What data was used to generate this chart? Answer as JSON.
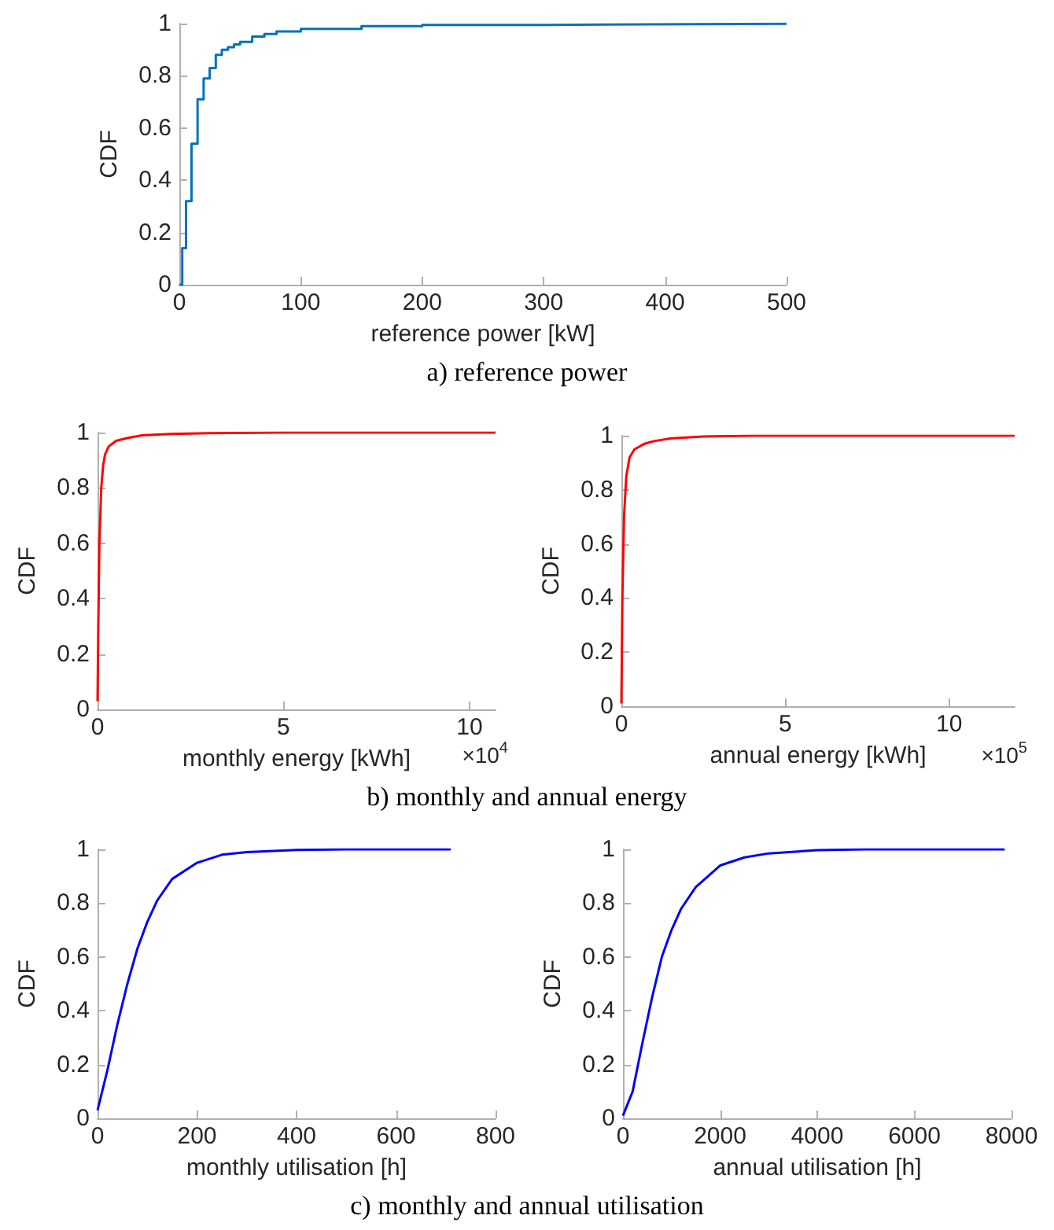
{
  "chart_data": [
    {
      "type": "step",
      "title": "a) reference power",
      "xlabel": "reference power [kW]",
      "ylabel": "CDF",
      "xlim": [
        0,
        500
      ],
      "xticks": [
        0,
        100,
        200,
        300,
        400,
        500
      ],
      "ylim": [
        0,
        1
      ],
      "yticks": [
        0,
        0.2,
        0.4,
        0.6,
        0.8,
        1
      ],
      "series": [
        {
          "color": "#0072bd",
          "x": [
            0,
            2.4,
            5.5,
            10,
            15,
            20,
            25,
            30,
            35,
            40,
            45,
            50,
            60,
            70,
            80,
            100,
            150,
            200,
            300,
            500
          ],
          "values": [
            0,
            0.14,
            0.32,
            0.54,
            0.71,
            0.79,
            0.83,
            0.88,
            0.9,
            0.91,
            0.92,
            0.93,
            0.95,
            0.96,
            0.97,
            0.98,
            0.99,
            0.995,
            0.999,
            1
          ]
        }
      ]
    },
    {
      "type": "line",
      "title": "b) monthly and annual energy",
      "xlabel": "monthly energy [kWh]",
      "ylabel": "CDF",
      "annotations": [
        "×10$^{4}$"
      ],
      "xlim": [
        0,
        10.7
      ],
      "xticks": [
        0,
        5,
        10
      ],
      "ylim": [
        0,
        1
      ],
      "yticks": [
        0,
        0.2,
        0.4,
        0.6,
        0.8,
        1
      ],
      "series": [
        {
          "color": "#ff0000",
          "x": [
            0,
            0.02,
            0.05,
            0.1,
            0.15,
            0.2,
            0.3,
            0.5,
            0.8,
            1.2,
            2,
            3,
            5,
            10.7
          ],
          "values": [
            0.03,
            0.3,
            0.6,
            0.8,
            0.88,
            0.92,
            0.95,
            0.97,
            0.98,
            0.99,
            0.995,
            0.998,
            1,
            1
          ]
        }
      ]
    },
    {
      "type": "line",
      "xlabel": "annual energy [kWh]",
      "ylabel": "CDF",
      "annotations": [
        "×10$^{5}$"
      ],
      "xlim": [
        0,
        12
      ],
      "xticks": [
        0,
        5,
        10
      ],
      "ylim": [
        0,
        1
      ],
      "yticks": [
        0,
        0.2,
        0.4,
        0.6,
        0.8,
        1
      ],
      "series": [
        {
          "color": "#ff0000",
          "x": [
            0,
            0.03,
            0.08,
            0.15,
            0.25,
            0.4,
            0.7,
            1,
            1.5,
            2.5,
            4,
            12
          ],
          "values": [
            0.01,
            0.4,
            0.7,
            0.85,
            0.92,
            0.95,
            0.97,
            0.98,
            0.99,
            0.997,
            1,
            1
          ]
        }
      ]
    },
    {
      "type": "line",
      "title": "c) monthly and annual utilisation",
      "xlabel": "monthly utilisation [h]",
      "ylabel": "CDF",
      "xlim": [
        0,
        800
      ],
      "xticks": [
        0,
        200,
        400,
        600,
        800
      ],
      "ylim": [
        0,
        1
      ],
      "yticks": [
        0,
        0.2,
        0.4,
        0.6,
        0.8,
        1
      ],
      "series": [
        {
          "color": "#0000ff",
          "x": [
            0,
            20,
            40,
            60,
            80,
            100,
            120,
            150,
            200,
            250,
            300,
            400,
            500,
            710
          ],
          "values": [
            0.03,
            0.18,
            0.35,
            0.5,
            0.63,
            0.73,
            0.81,
            0.89,
            0.95,
            0.98,
            0.99,
            0.998,
            1,
            1
          ]
        }
      ]
    },
    {
      "type": "line",
      "xlabel": "annual utilisation [h]",
      "ylabel": "CDF",
      "xlim": [
        0,
        8000
      ],
      "xticks": [
        0,
        2000,
        4000,
        6000,
        8000
      ],
      "ylim": [
        0,
        1
      ],
      "yticks": [
        0,
        0.2,
        0.4,
        0.6,
        0.8,
        1
      ],
      "series": [
        {
          "color": "#0000ff",
          "x": [
            0,
            200,
            400,
            600,
            800,
            1000,
            1200,
            1500,
            2000,
            2500,
            3000,
            4000,
            5000,
            7860
          ],
          "values": [
            0.01,
            0.1,
            0.28,
            0.45,
            0.6,
            0.7,
            0.78,
            0.86,
            0.94,
            0.97,
            0.985,
            0.997,
            1,
            1
          ]
        }
      ]
    }
  ]
}
